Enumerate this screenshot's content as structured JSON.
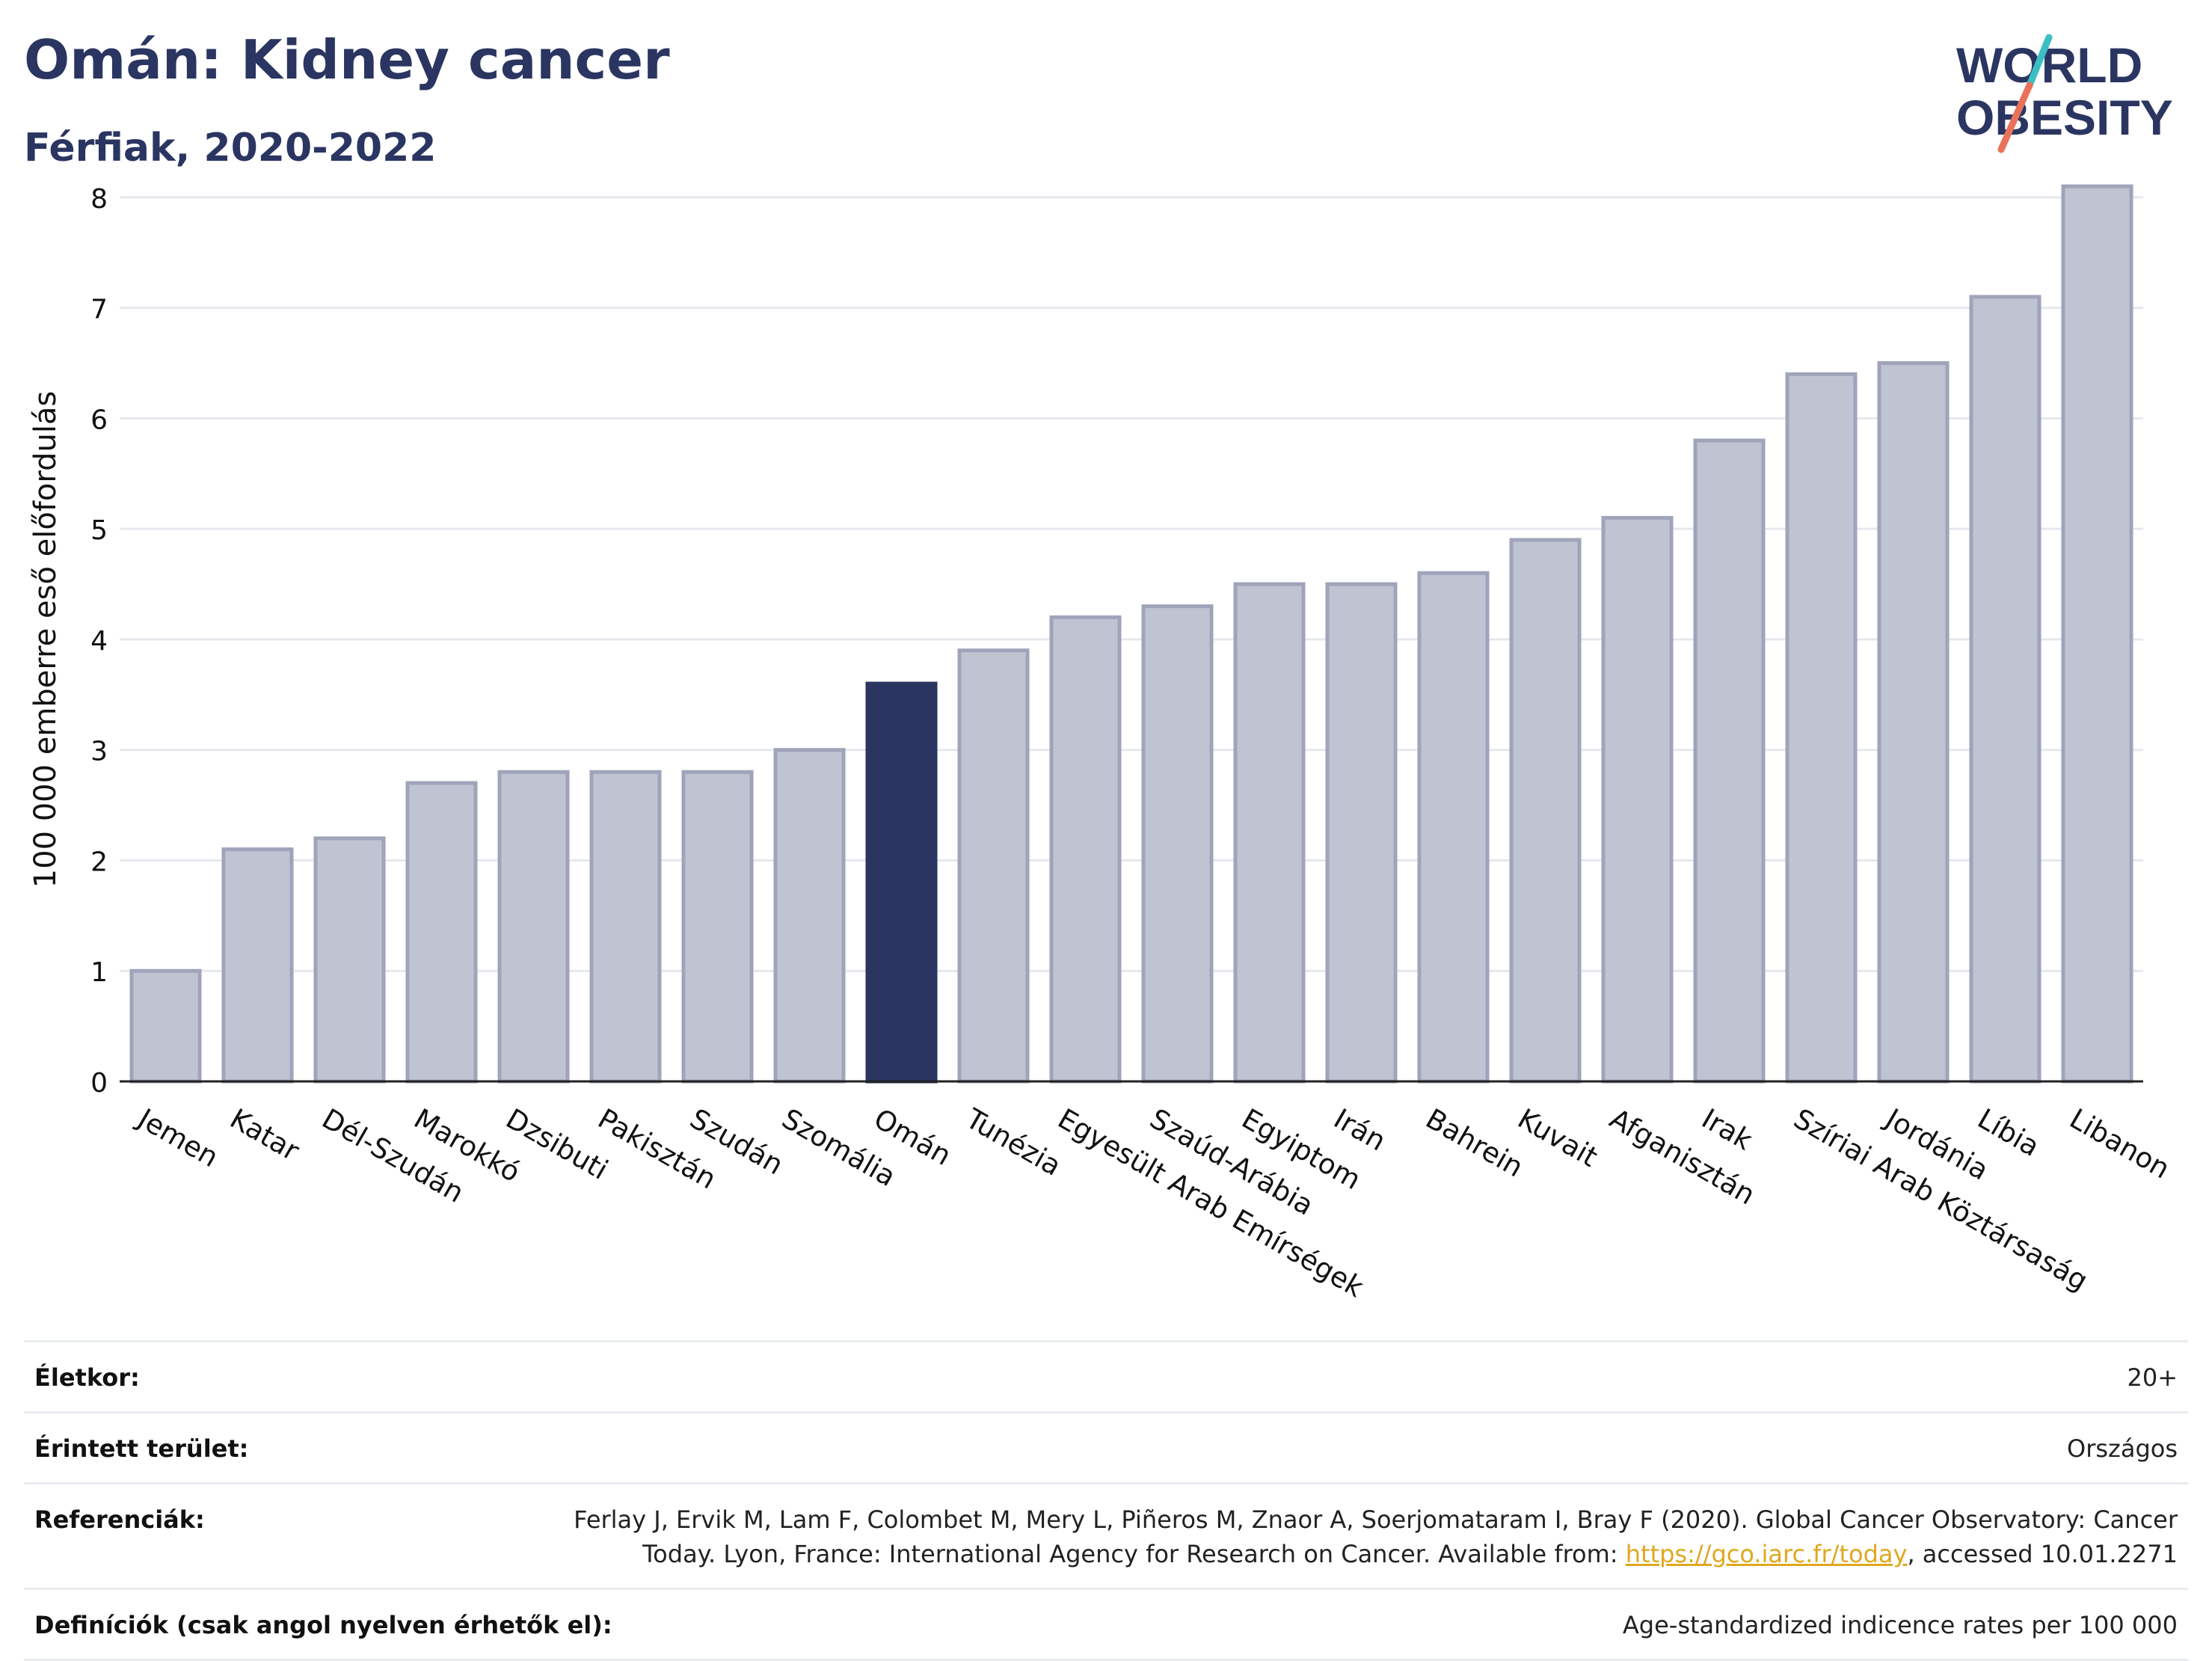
{
  "header": {
    "title": "Omán: Kidney cancer",
    "subtitle": "Férfiak, 2020-2022"
  },
  "logo": {
    "line1": "WORLD",
    "line2": "OBESITY",
    "accent_teal": "#3bbfc3",
    "accent_coral": "#e8735a",
    "text_color": "#2a3561"
  },
  "chart_data": {
    "type": "bar",
    "title": "Omán: Kidney cancer",
    "subtitle": "Férfiak, 2020-2022",
    "ylabel": "100 000 emberre eső előfordulás",
    "xlabel": "",
    "ylim": [
      0,
      8.5
    ],
    "yticks": [
      0,
      1,
      2,
      3,
      4,
      5,
      6,
      7,
      8
    ],
    "grid": true,
    "highlight": "Omán",
    "colors": {
      "bar": "#c0c3d1",
      "bar_border": "#9fa4bb",
      "highlight": "#2a3561",
      "axis": "#222222",
      "grid": "#e6e8ee"
    },
    "categories": [
      "Jemen",
      "Katar",
      "Dél-Szudán",
      "Marokkó",
      "Dzsibuti",
      "Pakisztán",
      "Szudán",
      "Szomália",
      "Omán",
      "Tunézia",
      "Egyesült Arab Emírségek",
      "Szaúd-Arábia",
      "Egyiptom",
      "Irán",
      "Bahrein",
      "Kuvait",
      "Afganisztán",
      "Irak",
      "Szíriai Arab Köztársaság",
      "Jordánia",
      "Líbia",
      "Libanon"
    ],
    "values": [
      1.0,
      2.1,
      2.2,
      2.7,
      2.8,
      2.8,
      2.8,
      3.0,
      3.6,
      3.9,
      4.2,
      4.3,
      4.5,
      4.5,
      4.6,
      4.9,
      5.1,
      5.8,
      6.4,
      6.5,
      7.1,
      8.1
    ]
  },
  "footer": {
    "rows": [
      {
        "label": "Életkor:",
        "value": "20+"
      },
      {
        "label": "Érintett terület:",
        "value": "Országos"
      },
      {
        "label": "Referenciák:",
        "value_line1": "Ferlay J, Ervik M, Lam F, Colombet M, Mery L, Piñeros M, Znaor A, Soerjomataram I, Bray F (2020). Global Cancer Observatory: Cancer",
        "value_line2_before": "Today. Lyon, France: International Agency for Research on Cancer. Available from: ",
        "link": "https://gco.iarc.fr/today",
        "value_line2_after": ", accessed 10.01.2271"
      },
      {
        "label": "Definíciók (csak angol nyelven érhetők el):",
        "value": "Age-standardized indicence rates per 100 000"
      }
    ]
  }
}
